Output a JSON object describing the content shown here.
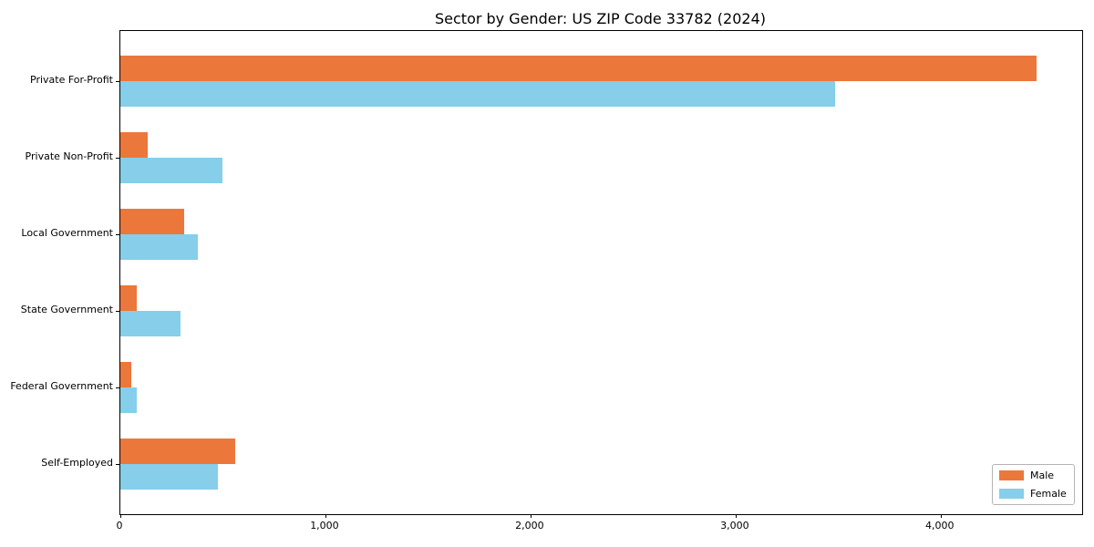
{
  "chart_data": {
    "type": "bar",
    "orientation": "horizontal",
    "title": "Sector by Gender: US ZIP Code 33782 (2024)",
    "categories": [
      "Private For-Profit",
      "Private Non-Profit",
      "Local Government",
      "State Government",
      "Federal Government",
      "Self-Employed"
    ],
    "series": [
      {
        "name": "Male",
        "color": "#EC773B",
        "values": [
          4467,
          133,
          311,
          80,
          53,
          561
        ]
      },
      {
        "name": "Female",
        "color": "#86CEEA",
        "values": [
          3484,
          498,
          378,
          294,
          80,
          476
        ]
      }
    ],
    "xlabel": "",
    "ylabel": "",
    "xlim": [
      0,
      4690
    ],
    "xticks": [
      {
        "value": 0,
        "label": "0"
      },
      {
        "value": 1000,
        "label": "1,000"
      },
      {
        "value": 2000,
        "label": "2,000"
      },
      {
        "value": 3000,
        "label": "3,000"
      },
      {
        "value": 4000,
        "label": "4,000"
      }
    ],
    "grid": false,
    "legend_position": "lower right",
    "background_color": "#ffffff",
    "spine_color": "#000000",
    "text_color": "#000000"
  }
}
